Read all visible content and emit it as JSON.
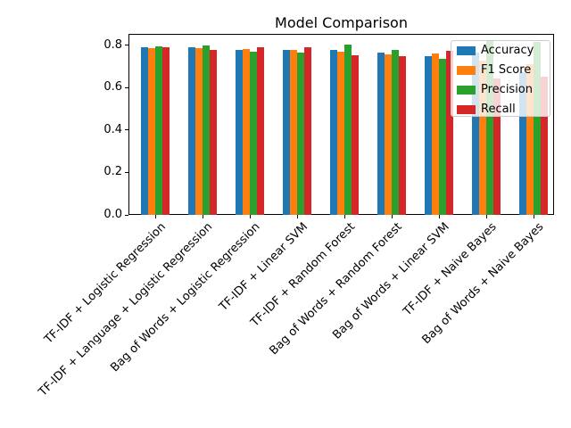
{
  "chart_data": {
    "type": "bar",
    "title": "Model Comparison",
    "xlabel": "",
    "ylabel": "",
    "grid": false,
    "ylim": [
      0,
      0.85
    ],
    "yticks": [
      0.0,
      0.2,
      0.4,
      0.6,
      0.8
    ],
    "legend": {
      "position": "upper right",
      "labels": [
        "Accuracy",
        "F1 Score",
        "Precision",
        "Recall"
      ]
    },
    "categories": [
      "TF-IDF + Logistic Regression",
      "TF-IDF + Language + Logistic Regression",
      "Bag of Words + Logistic Regression",
      "TF-IDF + Linear SVM",
      "TF-IDF + Random Forest",
      "Bag of Words + Random Forest",
      "Bag of Words + Linear SVM",
      "TF-IDF + Naive Bayes",
      "Bag of Words + Naive Bayes"
    ],
    "series": [
      {
        "name": "Accuracy",
        "color": "#1f77b4",
        "values": [
          0.79,
          0.79,
          0.776,
          0.776,
          0.777,
          0.765,
          0.749,
          0.763,
          0.674
        ]
      },
      {
        "name": "F1 Score",
        "color": "#ff7f0e",
        "values": [
          0.786,
          0.784,
          0.783,
          0.776,
          0.77,
          0.757,
          0.762,
          0.728,
          0.71
        ]
      },
      {
        "name": "Precision",
        "color": "#2ca02c",
        "values": [
          0.795,
          0.797,
          0.77,
          0.766,
          0.804,
          0.777,
          0.737,
          0.818,
          0.815
        ]
      },
      {
        "name": "Recall",
        "color": "#d62728",
        "values": [
          0.79,
          0.779,
          0.791,
          0.79,
          0.753,
          0.748,
          0.775,
          0.644,
          0.65
        ]
      }
    ]
  }
}
